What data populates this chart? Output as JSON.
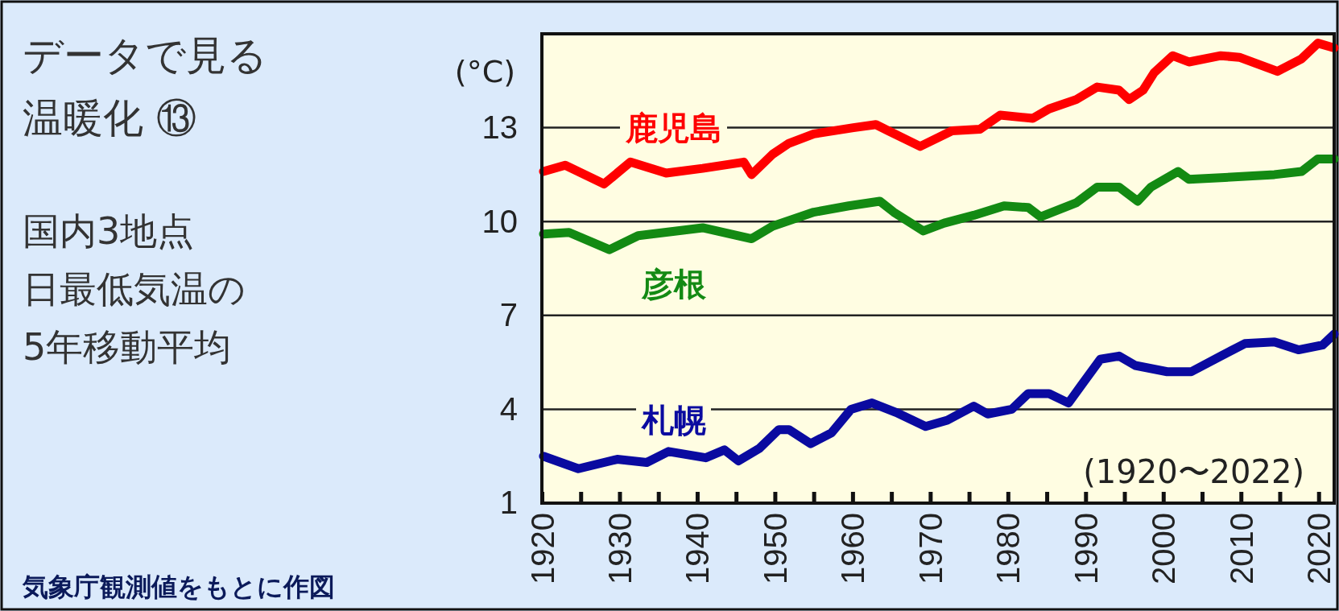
{
  "chart_data": {
    "type": "line",
    "title": "データで見る温暖化 ⑬",
    "subtitle": "国内3地点日最低気温の5年移動平均",
    "ylabel": "(°C)",
    "annotations": [
      "(1920〜2022)",
      "気象庁観測値をもとに作図"
    ],
    "xlim": [
      1920,
      2022
    ],
    "xticks": [
      1920,
      {
        "value": 1925,
        "label": null
      },
      1930,
      {
        "value": 1935,
        "label": null
      },
      1940,
      {
        "value": 1945,
        "label": null
      },
      1950,
      {
        "value": 1955,
        "label": null
      },
      1960,
      {
        "value": 1965,
        "label": null
      },
      1970,
      {
        "value": 1975,
        "label": null
      },
      1980,
      {
        "value": 1985,
        "label": null
      },
      1990,
      {
        "value": 1995,
        "label": null
      },
      2000,
      {
        "value": 2005,
        "label": null
      },
      2010,
      {
        "value": 2015,
        "label": null
      },
      2020
    ],
    "ylim": [
      1,
      16
    ],
    "yticks": [
      1,
      4,
      7,
      10,
      13
    ],
    "grid": "y",
    "legend": false,
    "line_style": "solid",
    "marker": "none",
    "series": [
      {
        "name": "鹿児島",
        "color": "#ff0000",
        "x": [
          1920.2,
          1923,
          1928,
          1931.4,
          1936,
          1940.7,
          1946,
          1947,
          1949.7,
          1951.8,
          1955,
          1960.1,
          1963,
          1964.6,
          1968.7,
          1972.8,
          1976.4,
          1979,
          1983.2,
          1985.3,
          1988.8,
          1991.5,
          1994.3,
          1995.6,
          1997.4,
          1998.8,
          2001.2,
          2003.3,
          2007.4,
          2009.8,
          2014.7,
          2017.8,
          2019.9,
          2022
        ],
        "values": [
          11.6,
          11.8,
          11.2,
          11.9,
          11.55,
          11.7,
          11.9,
          11.5,
          12.15,
          12.5,
          12.8,
          13.0,
          13.1,
          12.9,
          12.4,
          12.9,
          12.95,
          13.4,
          13.3,
          13.6,
          13.9,
          14.3,
          14.2,
          13.9,
          14.2,
          14.75,
          15.3,
          15.1,
          15.3,
          15.25,
          14.8,
          15.2,
          15.7,
          15.55
        ]
      },
      {
        "name": "彦根",
        "color": "#138a13",
        "x": [
          1920.2,
          1923.5,
          1928.7,
          1932.4,
          1940.7,
          1947,
          1949.7,
          1955,
          1959.5,
          1963.5,
          1965.3,
          1969.1,
          1971.8,
          1975.6,
          1979.5,
          1982.6,
          1984.2,
          1988.8,
          1991.5,
          1994.3,
          1996.7,
          1998.4,
          2001.9,
          2003.3,
          2007.4,
          2014.3,
          2017.8,
          2019.9,
          2022
        ],
        "values": [
          9.6,
          9.65,
          9.1,
          9.55,
          9.8,
          9.45,
          9.85,
          10.3,
          10.5,
          10.65,
          10.3,
          9.7,
          9.95,
          10.2,
          10.5,
          10.45,
          10.15,
          10.6,
          11.1,
          11.1,
          10.65,
          11.1,
          11.6,
          11.35,
          11.4,
          11.5,
          11.6,
          12.0,
          12.0
        ]
      },
      {
        "name": "札幌",
        "color": "#0a0aa0",
        "x": [
          1920.2,
          1924.7,
          1929.7,
          1933.5,
          1936.3,
          1941.1,
          1943.5,
          1945.3,
          1948,
          1950.5,
          1951.8,
          1954.6,
          1957.3,
          1959.8,
          1962.5,
          1965.6,
          1969.4,
          1972.2,
          1975.6,
          1977.4,
          1980.5,
          1982.6,
          1985.3,
          1987.8,
          1989.4,
          1991.9,
          1994.3,
          1996.4,
          2000.5,
          2003.6,
          2007.4,
          2010.5,
          2014.3,
          2017.4,
          2020.5,
          2022
        ],
        "values": [
          2.5,
          2.1,
          2.4,
          2.3,
          2.65,
          2.45,
          2.7,
          2.35,
          2.75,
          3.35,
          3.35,
          2.9,
          3.25,
          4.0,
          4.2,
          3.9,
          3.45,
          3.65,
          4.1,
          3.85,
          4.0,
          4.5,
          4.5,
          4.2,
          4.75,
          5.6,
          5.7,
          5.4,
          5.2,
          5.2,
          5.7,
          6.1,
          6.15,
          5.9,
          6.05,
          6.4
        ]
      }
    ]
  }
}
